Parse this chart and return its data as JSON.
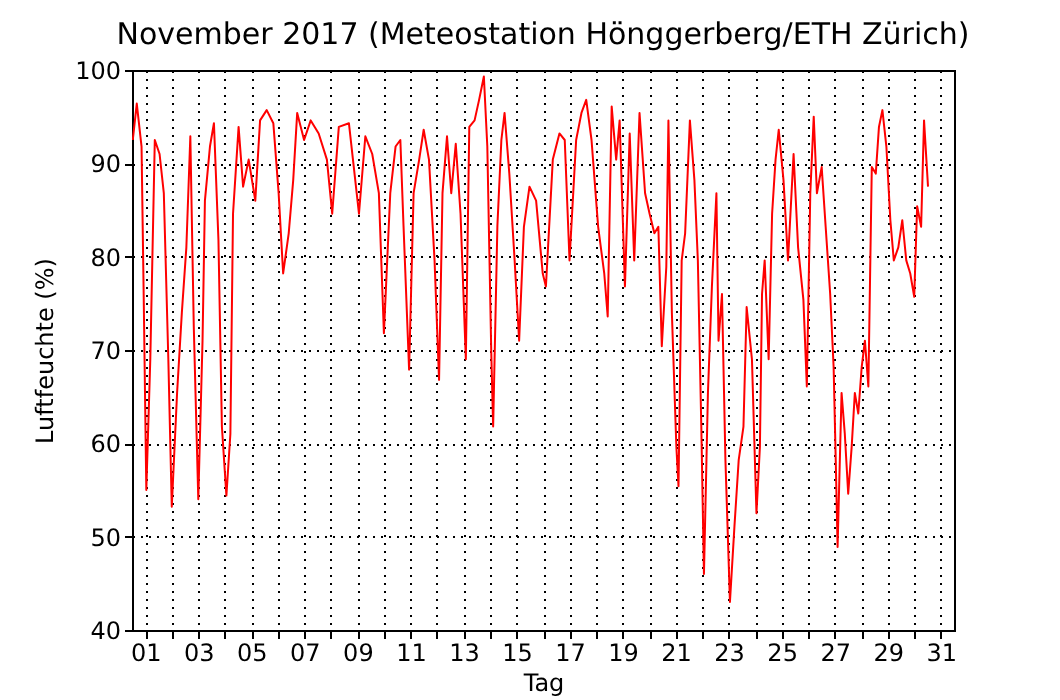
{
  "chart_data": {
    "type": "line",
    "title": "November 2017  (Meteostation Hönggerberg/ETH Zürich)",
    "xlabel": "Tag",
    "ylabel": "Luftfeuchte (%)",
    "xlim": [
      0.5,
      31.5
    ],
    "ylim": [
      40,
      100
    ],
    "xticks": [
      {
        "value": 1,
        "label": "01"
      },
      {
        "value": 2,
        "label": null
      },
      {
        "value": 3,
        "label": "03"
      },
      {
        "value": 4,
        "label": null
      },
      {
        "value": 5,
        "label": "05"
      },
      {
        "value": 6,
        "label": null
      },
      {
        "value": 7,
        "label": "07"
      },
      {
        "value": 8,
        "label": null
      },
      {
        "value": 9,
        "label": "09"
      },
      {
        "value": 10,
        "label": null
      },
      {
        "value": 11,
        "label": "11"
      },
      {
        "value": 12,
        "label": null
      },
      {
        "value": 13,
        "label": "13"
      },
      {
        "value": 14,
        "label": null
      },
      {
        "value": 15,
        "label": "15"
      },
      {
        "value": 16,
        "label": null
      },
      {
        "value": 17,
        "label": "17"
      },
      {
        "value": 18,
        "label": null
      },
      {
        "value": 19,
        "label": "19"
      },
      {
        "value": 20,
        "label": null
      },
      {
        "value": 21,
        "label": "21"
      },
      {
        "value": 22,
        "label": null
      },
      {
        "value": 23,
        "label": "23"
      },
      {
        "value": 24,
        "label": null
      },
      {
        "value": 25,
        "label": "25"
      },
      {
        "value": 26,
        "label": null
      },
      {
        "value": 27,
        "label": "27"
      },
      {
        "value": 28,
        "label": null
      },
      {
        "value": 29,
        "label": "29"
      },
      {
        "value": 30,
        "label": null
      },
      {
        "value": 31,
        "label": "31"
      }
    ],
    "yticks": [
      40,
      50,
      60,
      70,
      80,
      90,
      100
    ],
    "grid": true,
    "marker": "none",
    "line_style": "solid",
    "x": [
      0.53,
      0.68,
      0.86,
      0.94,
      1.04,
      1.19,
      1.36,
      1.54,
      1.7,
      1.87,
      2.0,
      2.2,
      2.38,
      2.55,
      2.7,
      2.83,
      3.0,
      3.16,
      3.25,
      3.44,
      3.59,
      3.76,
      3.89,
      4.06,
      4.21,
      4.31,
      4.52,
      4.69,
      4.9,
      5.15,
      5.33,
      5.58,
      5.83,
      6.03,
      6.2,
      6.41,
      6.58,
      6.73,
      6.99,
      7.24,
      7.54,
      7.85,
      8.05,
      8.3,
      8.68,
      9.06,
      9.3,
      9.56,
      9.81,
      10.0,
      10.24,
      10.44,
      10.62,
      10.74,
      10.95,
      11.12,
      11.33,
      11.5,
      11.7,
      11.91,
      12.08,
      12.21,
      12.38,
      12.54,
      12.71,
      12.89,
      13.09,
      13.22,
      13.42,
      13.59,
      13.77,
      13.9,
      14.05,
      14.12,
      14.28,
      14.43,
      14.55,
      14.73,
      14.93,
      15.1,
      15.28,
      15.49,
      15.74,
      15.99,
      16.11,
      16.37,
      16.62,
      16.82,
      17.0,
      17.25,
      17.45,
      17.63,
      17.83,
      18.08,
      18.31,
      18.44,
      18.59,
      18.76,
      18.89,
      19.09,
      19.27,
      19.44,
      19.64,
      19.85,
      20.02,
      20.2,
      20.35,
      20.48,
      20.65,
      20.73,
      20.86,
      21.03,
      21.11,
      21.23,
      21.36,
      21.54,
      21.71,
      21.84,
      21.97,
      22.07,
      22.22,
      22.37,
      22.54,
      22.62,
      22.75,
      22.88,
      23.05,
      23.22,
      23.38,
      23.56,
      23.68,
      23.88,
      24.05,
      24.18,
      24.26,
      24.36,
      24.51,
      24.64,
      24.77,
      24.89,
      25.07,
      25.24,
      25.45,
      25.62,
      25.82,
      25.95,
      26.08,
      26.21,
      26.33,
      26.51,
      26.66,
      26.83,
      26.96,
      27.04,
      27.11,
      27.26,
      27.38,
      27.51,
      27.64,
      27.76,
      27.89,
      28.02,
      28.14,
      28.27,
      28.4,
      28.55,
      28.67,
      28.8,
      28.95,
      29.1,
      29.23,
      29.4,
      29.55,
      29.7,
      29.85,
      30.0,
      30.11,
      30.26,
      30.37,
      30.52
    ],
    "series": [
      {
        "color": "#ff0000",
        "values": [
          92.5,
          96.4,
          91.8,
          76,
          55,
          69,
          92.5,
          91,
          86.8,
          69,
          53.2,
          65.4,
          74,
          81,
          92.9,
          72.5,
          54,
          71,
          86,
          91.8,
          94.3,
          81.8,
          61.8,
          54.4,
          61,
          84.6,
          93.9,
          87.5,
          90.4,
          86,
          94.6,
          95.7,
          94.3,
          86.8,
          78.2,
          82.5,
          88.2,
          95.4,
          92.5,
          94.6,
          93.2,
          90.4,
          84.6,
          93.9,
          94.3,
          84.6,
          92.9,
          91,
          86.8,
          71.8,
          86.8,
          91.8,
          92.5,
          83.3,
          67.9,
          86.8,
          90.4,
          93.6,
          90.4,
          79.6,
          66.8,
          86.8,
          92.9,
          86.8,
          92.1,
          84.6,
          69,
          93.9,
          94.6,
          96.8,
          99.3,
          91.8,
          69.6,
          61.8,
          83.3,
          92.5,
          95.4,
          88.9,
          79.6,
          71,
          83.2,
          87.5,
          86,
          78.2,
          76.8,
          90.4,
          93.2,
          92.5,
          79.6,
          92.5,
          95.4,
          96.8,
          92.5,
          83.2,
          78.2,
          73.6,
          96.1,
          90.4,
          94.6,
          76.8,
          93.2,
          79.6,
          95.4,
          86.8,
          84.6,
          82.5,
          83.2,
          70.4,
          78.9,
          94.6,
          74,
          59.6,
          55.4,
          79.6,
          82.5,
          94.6,
          88.2,
          79.6,
          61.8,
          46,
          65.4,
          76.8,
          86.8,
          71,
          76,
          58.2,
          43,
          51.1,
          58.2,
          61.8,
          74.6,
          69,
          52.5,
          59.6,
          76,
          79.6,
          69,
          84.6,
          90.4,
          93.6,
          88.2,
          79.6,
          91,
          81,
          75.4,
          66.1,
          86.8,
          95,
          86.8,
          89.6,
          83.2,
          76,
          68.2,
          58.2,
          48.9,
          65.4,
          61.1,
          54.6,
          59.6,
          65.4,
          63.2,
          68.2,
          71,
          66.1,
          89.6,
          88.9,
          93.9,
          95.7,
          91.8,
          83.9,
          79.6,
          81,
          83.9,
          79.6,
          78.2,
          75.7,
          85.4,
          83.2,
          94.6,
          87.5
        ]
      }
    ]
  }
}
